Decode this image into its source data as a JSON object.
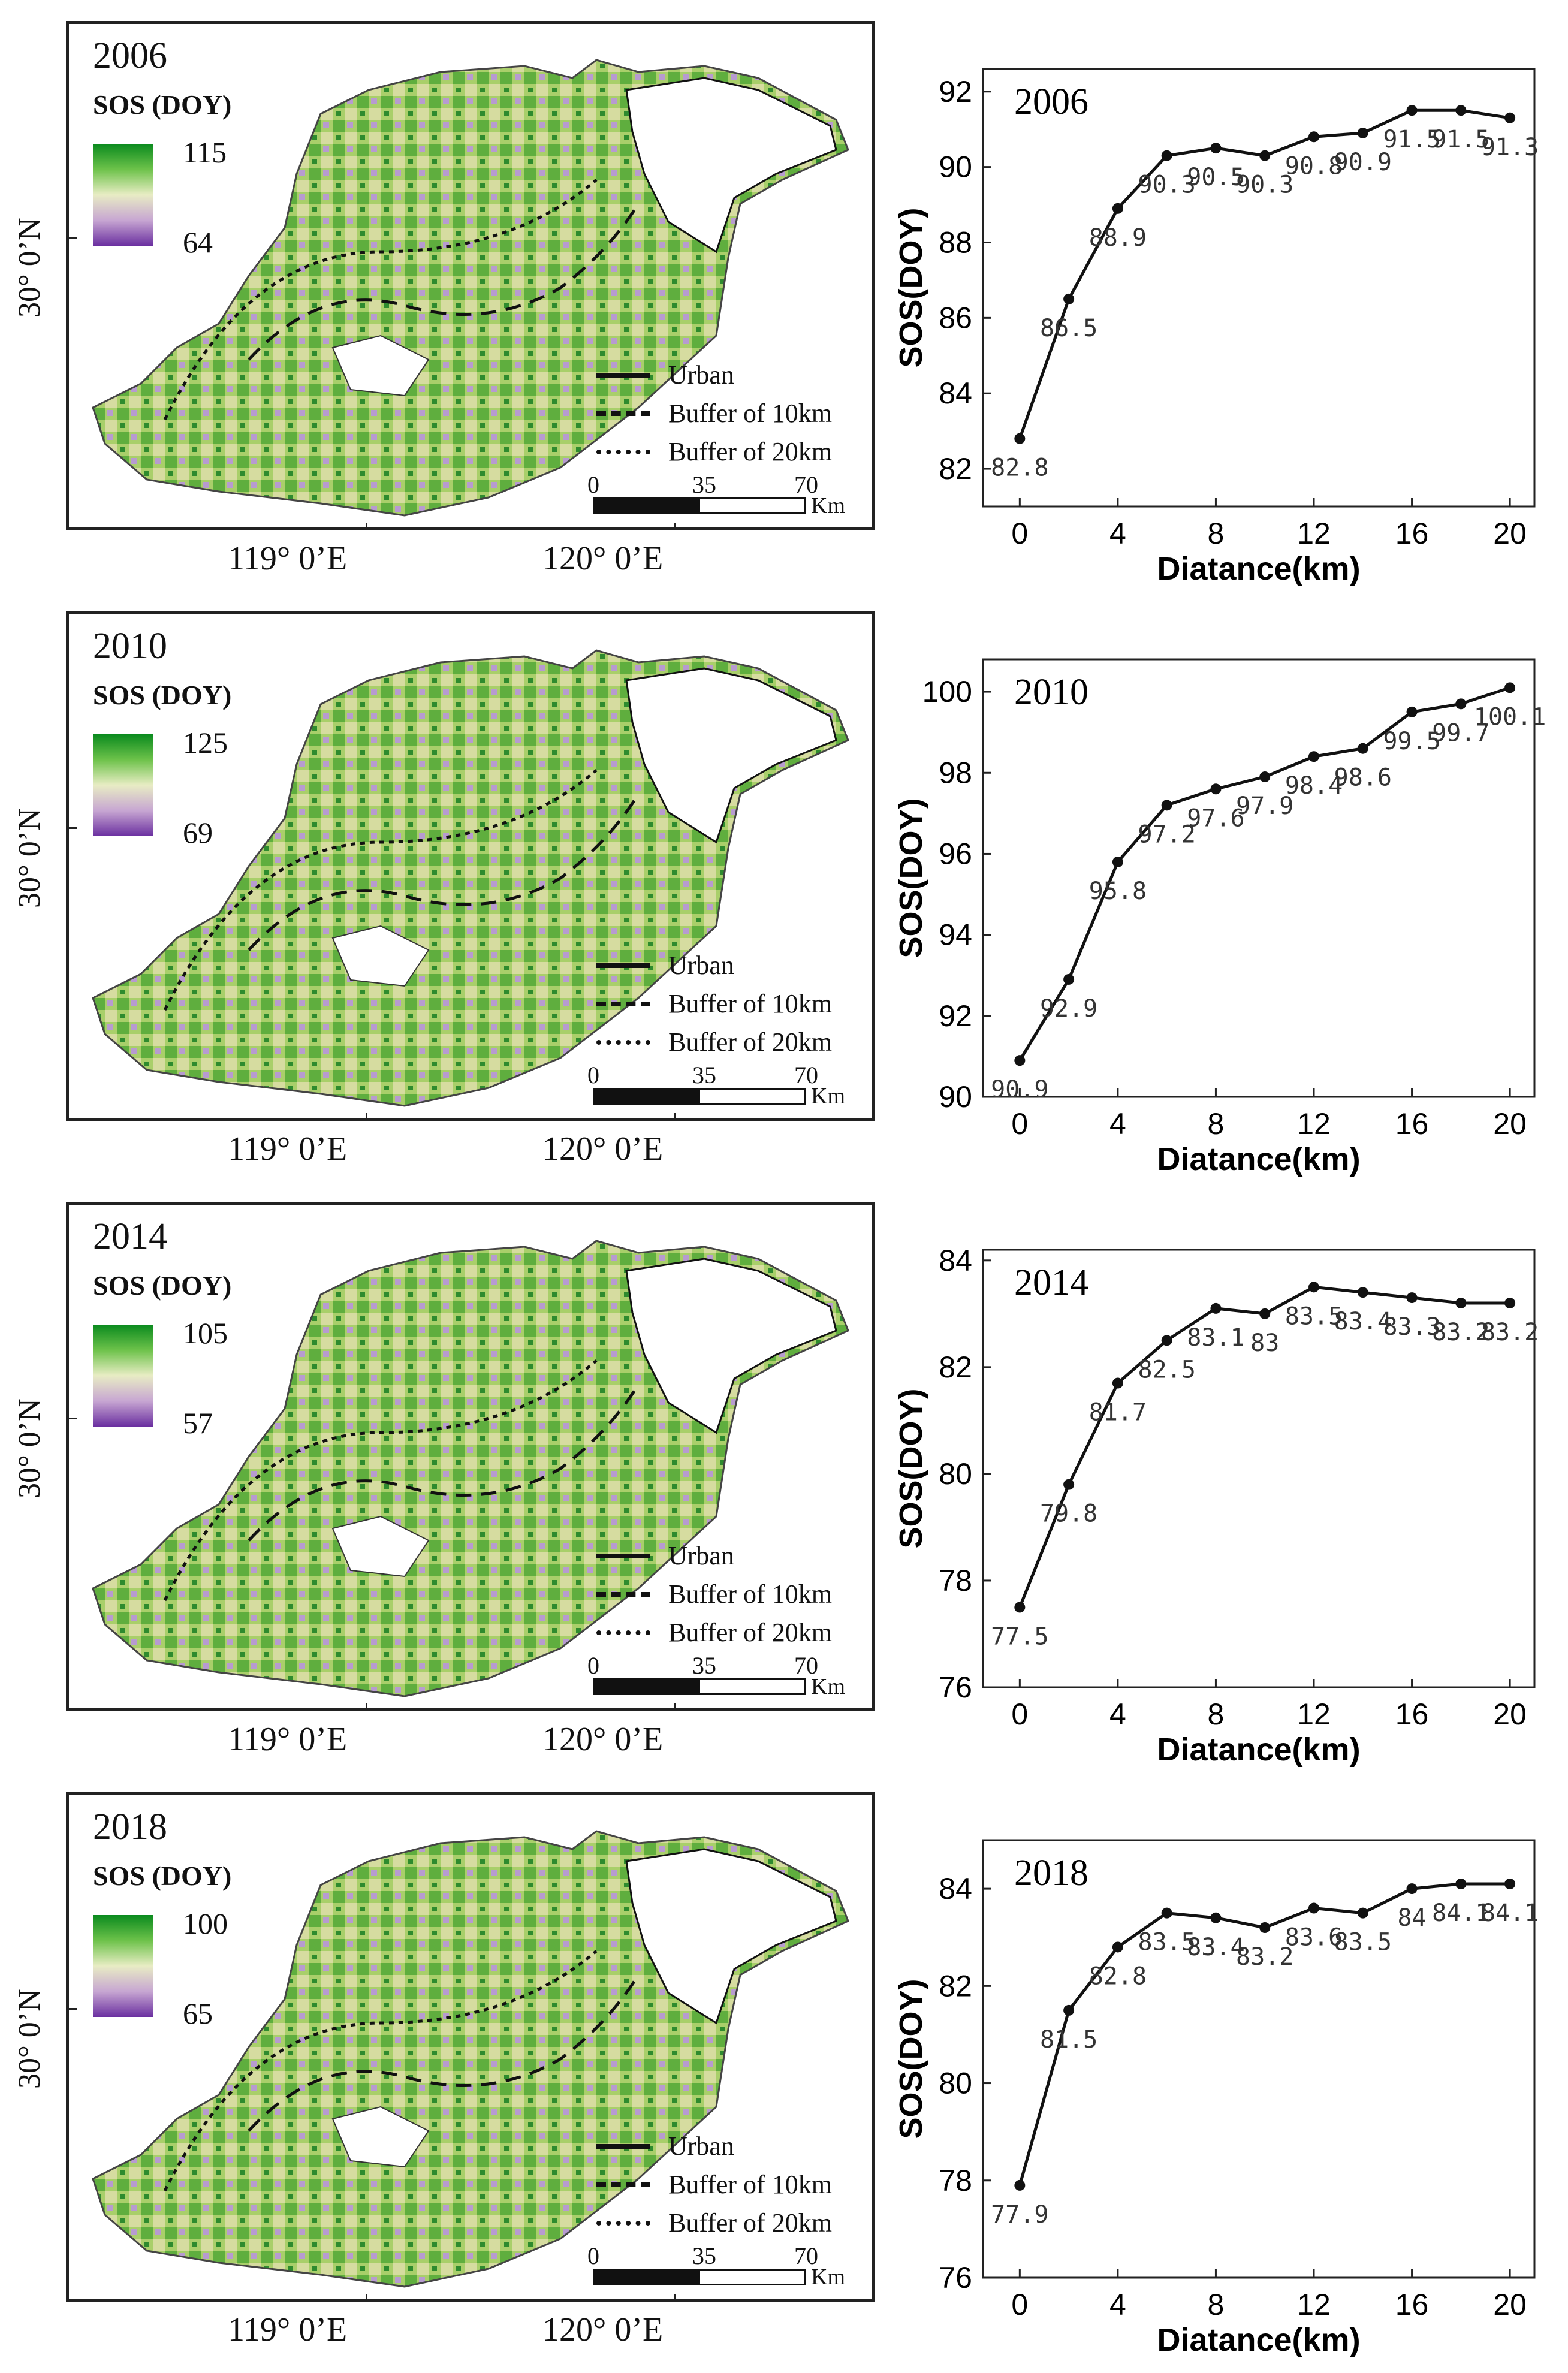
{
  "panels": [
    {
      "year": "2006",
      "map": {
        "legend_title": "SOS (DOY)",
        "legend_max": "115",
        "legend_min": "64",
        "lat_label": "30° 0’N",
        "lon_labels": [
          "119° 0’E",
          "120° 0’E"
        ],
        "line_legend": [
          "Urban",
          "Buffer of 10km",
          "Buffer of 20km"
        ],
        "scale": [
          "0",
          "35",
          "70"
        ],
        "scale_unit": "Km"
      }
    },
    {
      "year": "2010",
      "map": {
        "legend_title": "SOS (DOY)",
        "legend_max": "125",
        "legend_min": "69",
        "lat_label": "30° 0’N",
        "lon_labels": [
          "119° 0’E",
          "120° 0’E"
        ],
        "line_legend": [
          "Urban",
          "Buffer of 10km",
          "Buffer of 20km"
        ],
        "scale": [
          "0",
          "35",
          "70"
        ],
        "scale_unit": "Km"
      }
    },
    {
      "year": "2014",
      "map": {
        "legend_title": "SOS (DOY)",
        "legend_max": "105",
        "legend_min": "57",
        "lat_label": "30° 0’N",
        "lon_labels": [
          "119° 0’E",
          "120° 0’E"
        ],
        "line_legend": [
          "Urban",
          "Buffer of 10km",
          "Buffer of 20km"
        ],
        "scale": [
          "0",
          "35",
          "70"
        ],
        "scale_unit": "Km"
      }
    },
    {
      "year": "2018",
      "map": {
        "legend_title": "SOS (DOY)",
        "legend_max": "100",
        "legend_min": "65",
        "lat_label": "30° 0’N",
        "lon_labels": [
          "119° 0’E",
          "120° 0’E"
        ],
        "line_legend": [
          "Urban",
          "Buffer of 10km",
          "Buffer of 20km"
        ],
        "scale": [
          "0",
          "35",
          "70"
        ],
        "scale_unit": "Km"
      }
    }
  ],
  "chart_data": [
    {
      "type": "line",
      "title": "2006",
      "xlabel": "Diatance(km)",
      "ylabel": "SOS(DOY)",
      "x": [
        0,
        2,
        4,
        6,
        8,
        10,
        12,
        14,
        16,
        18,
        20
      ],
      "values": [
        82.8,
        86.5,
        88.9,
        90.3,
        90.5,
        90.3,
        90.8,
        90.9,
        91.5,
        91.5,
        91.3
      ],
      "labels": [
        "82.8",
        "86.5",
        "88.9",
        "90.3",
        "90.5",
        "90.3",
        "90.8",
        "90.9",
        "91.5",
        "91.5",
        "91.3"
      ],
      "xlim": [
        -1.5,
        21
      ],
      "ylim": [
        81,
        92.6
      ],
      "xticks": [
        0,
        4,
        8,
        12,
        16,
        20
      ],
      "yticks": [
        82,
        84,
        86,
        88,
        90,
        92
      ]
    },
    {
      "type": "line",
      "title": "2010",
      "xlabel": "Diatance(km)",
      "ylabel": "SOS(DOY)",
      "x": [
        0,
        2,
        4,
        6,
        8,
        10,
        12,
        14,
        16,
        18,
        20
      ],
      "values": [
        90.9,
        92.9,
        95.8,
        97.2,
        97.6,
        97.9,
        98.4,
        98.6,
        99.5,
        99.7,
        100.1
      ],
      "labels": [
        "90.9",
        "92.9",
        "95.8",
        "97.2",
        "97.6",
        "97.9",
        "98.4",
        "98.6",
        "99.5",
        "99.7",
        "100.1"
      ],
      "xlim": [
        -1.5,
        21
      ],
      "ylim": [
        90,
        100.8
      ],
      "xticks": [
        0,
        4,
        8,
        12,
        16,
        20
      ],
      "yticks": [
        90,
        92,
        94,
        96,
        98,
        100
      ]
    },
    {
      "type": "line",
      "title": "2014",
      "xlabel": "Diatance(km)",
      "ylabel": "SOS(DOY)",
      "x": [
        0,
        2,
        4,
        6,
        8,
        10,
        12,
        14,
        16,
        18,
        20
      ],
      "values": [
        77.5,
        79.8,
        81.7,
        82.5,
        83.1,
        83.0,
        83.5,
        83.4,
        83.3,
        83.2,
        83.2
      ],
      "labels": [
        "77.5",
        "79.8",
        "81.7",
        "82.5",
        "83.1",
        "83",
        "83.5",
        "83.4",
        "83.3",
        "83.2",
        "83.2"
      ],
      "xlim": [
        -1.5,
        21
      ],
      "ylim": [
        76,
        84.2
      ],
      "xticks": [
        0,
        4,
        8,
        12,
        16,
        20
      ],
      "yticks": [
        76,
        78,
        80,
        82,
        84
      ]
    },
    {
      "type": "line",
      "title": "2018",
      "xlabel": "Diatance(km)",
      "ylabel": "SOS(DOY)",
      "x": [
        0,
        2,
        4,
        6,
        8,
        10,
        12,
        14,
        16,
        18,
        20
      ],
      "values": [
        77.9,
        81.5,
        82.8,
        83.5,
        83.4,
        83.2,
        83.6,
        83.5,
        84.0,
        84.1,
        84.1
      ],
      "labels": [
        "77.9",
        "81.5",
        "82.8",
        "83.5",
        "83.4",
        "83.2",
        "83.6",
        "83.5",
        "84",
        "84.1",
        "84.1"
      ],
      "xlim": [
        -1.5,
        21
      ],
      "ylim": [
        76,
        85
      ],
      "xticks": [
        0,
        4,
        8,
        12,
        16,
        20
      ],
      "yticks": [
        76,
        78,
        80,
        82,
        84
      ]
    }
  ]
}
